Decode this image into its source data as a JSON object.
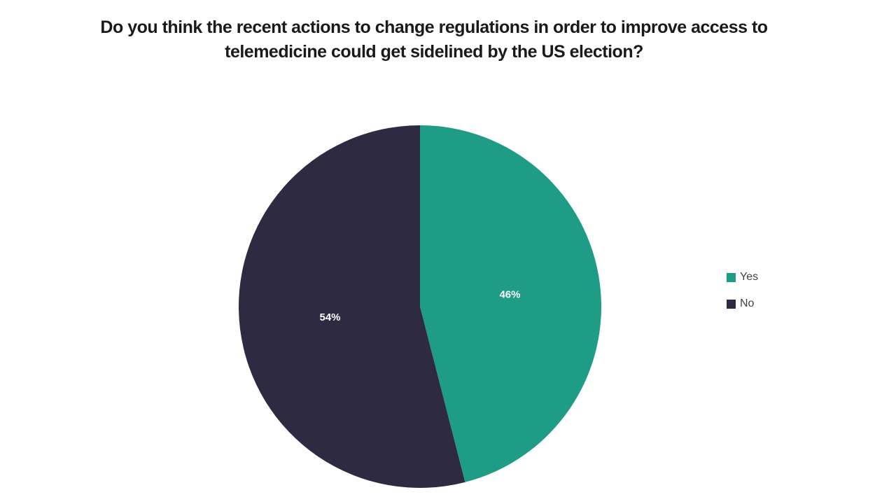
{
  "title_lines": [
    "Do you think the recent actions to change regulations in order to improve access to",
    "telemedicine could get sidelined by the US election?"
  ],
  "chart_data": {
    "type": "pie",
    "title": "Do you think the recent actions to change regulations in order to improve access to telemedicine could get sidelined by the US election?",
    "categories": [
      "Yes",
      "No"
    ],
    "values": [
      46,
      54
    ],
    "unit": "%",
    "data_labels": [
      "46%",
      "54%"
    ],
    "colors": [
      "#1E9C85",
      "#2E2A42"
    ],
    "start_angle_deg": 0,
    "direction": "clockwise",
    "legend_position": "right",
    "legend_entries": [
      "Yes",
      "No"
    ],
    "data_label_color": "#ffffff",
    "background_color": "#ffffff",
    "title_color": "#1a1a1a",
    "legend_text_color": "#404040"
  }
}
